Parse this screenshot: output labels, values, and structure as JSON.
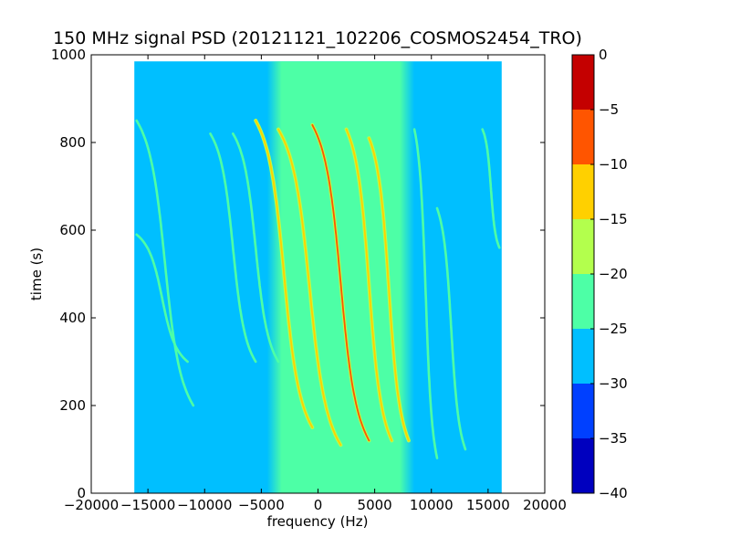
{
  "chart_data": {
    "type": "heatmap",
    "title": "150 MHz signal PSD (20121121_102206_COSMOS2454_TRO)",
    "xlabel": "frequency (Hz)",
    "ylabel": "time (s)",
    "xlim": [
      -20000,
      20000
    ],
    "ylim": [
      0,
      1000
    ],
    "xticks": [
      -20000,
      -15000,
      -10000,
      -5000,
      0,
      5000,
      10000,
      15000,
      20000
    ],
    "xtick_labels": [
      "−20000",
      "−15000",
      "−10000",
      "−5000",
      "0",
      "5000",
      "10000",
      "15000",
      "20000"
    ],
    "yticks": [
      0,
      200,
      400,
      600,
      800,
      1000
    ],
    "ytick_labels": [
      "0",
      "200",
      "400",
      "600",
      "800",
      "1000"
    ],
    "data_extent": {
      "x": [
        -16200,
        16200
      ],
      "y": [
        0,
        985
      ]
    },
    "background_level_edges": -27.5,
    "background_level_center": -22.5,
    "center_band": {
      "x": [
        -4500,
        8500
      ]
    },
    "traces": [
      {
        "f_top": -16000,
        "f_bottom": -11500,
        "t_top": 590,
        "t_bottom": 300,
        "level": -22.5
      },
      {
        "f_top": -16000,
        "f_bottom": -11000,
        "t_top": 850,
        "t_bottom": 200,
        "level": -22.5
      },
      {
        "f_top": -9500,
        "f_bottom": -5500,
        "t_top": 820,
        "t_bottom": 300,
        "level": -22.5
      },
      {
        "f_top": -7500,
        "f_bottom": -3500,
        "t_top": 820,
        "t_bottom": 300,
        "level": -22.5
      },
      {
        "f_top": -5500,
        "f_bottom": -500,
        "t_top": 850,
        "t_bottom": 150,
        "level": -12.5
      },
      {
        "f_top": -3500,
        "f_bottom": 2000,
        "t_top": 830,
        "t_bottom": 110,
        "level": -12.5
      },
      {
        "f_top": -500,
        "f_bottom": 4500,
        "t_top": 840,
        "t_bottom": 120,
        "level": -7.5
      },
      {
        "f_top": 2500,
        "f_bottom": 6500,
        "t_top": 830,
        "t_bottom": 120,
        "level": -12.5
      },
      {
        "f_top": 4500,
        "f_bottom": 8000,
        "t_top": 810,
        "t_bottom": 120,
        "level": -12.5
      },
      {
        "f_top": 8500,
        "f_bottom": 10500,
        "t_top": 830,
        "t_bottom": 80,
        "level": -22.5
      },
      {
        "f_top": 10500,
        "f_bottom": 13000,
        "t_top": 650,
        "t_bottom": 100,
        "level": -22.5
      },
      {
        "f_top": 14500,
        "f_bottom": 16000,
        "t_top": 830,
        "t_bottom": 560,
        "level": -22.5
      }
    ],
    "colorbar": {
      "levels": [
        -40,
        -35,
        -30,
        -25,
        -20,
        -15,
        -10,
        -5,
        0
      ],
      "tick_labels": [
        "−40",
        "−35",
        "−30",
        "−25",
        "−20",
        "−15",
        "−10",
        "−5",
        "0"
      ],
      "colors": [
        "#0000bf",
        "#0040ff",
        "#00bfff",
        "#4dffa6",
        "#b3ff4d",
        "#ffd000",
        "#ff5500",
        "#c40000"
      ]
    }
  }
}
